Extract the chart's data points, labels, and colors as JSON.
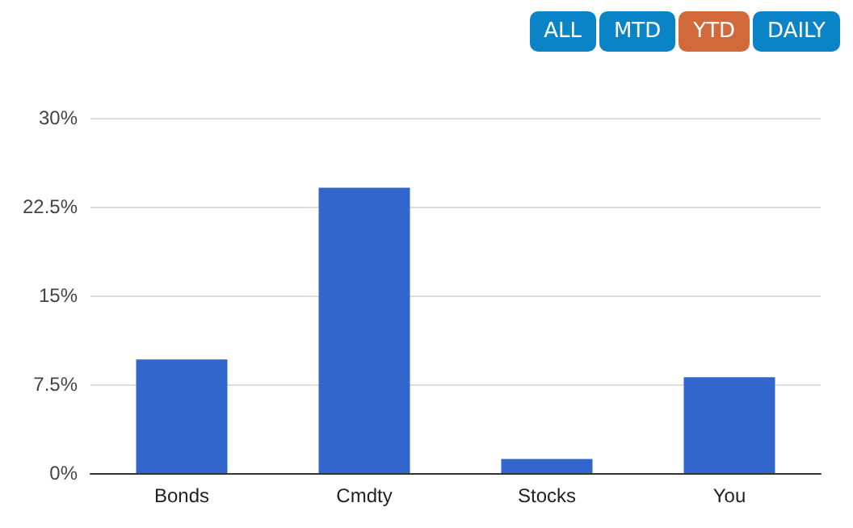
{
  "chart_data": {
    "type": "bar",
    "categories": [
      "Bonds",
      "Cmdty",
      "Stocks",
      "You"
    ],
    "values": [
      9.6,
      24.1,
      1.2,
      8.1
    ],
    "color": "#3366cc",
    "ylim": [
      0,
      30
    ],
    "yticks": [
      {
        "value": 0,
        "label": "0%"
      },
      {
        "value": 7.5,
        "label": "7.5%"
      },
      {
        "value": 15,
        "label": "15%"
      },
      {
        "value": 22.5,
        "label": "22.5%"
      },
      {
        "value": 30,
        "label": "30%"
      }
    ],
    "grid": "y",
    "annotations": [
      "ALL",
      "MTD",
      "YTD",
      "DAILY"
    ]
  }
}
